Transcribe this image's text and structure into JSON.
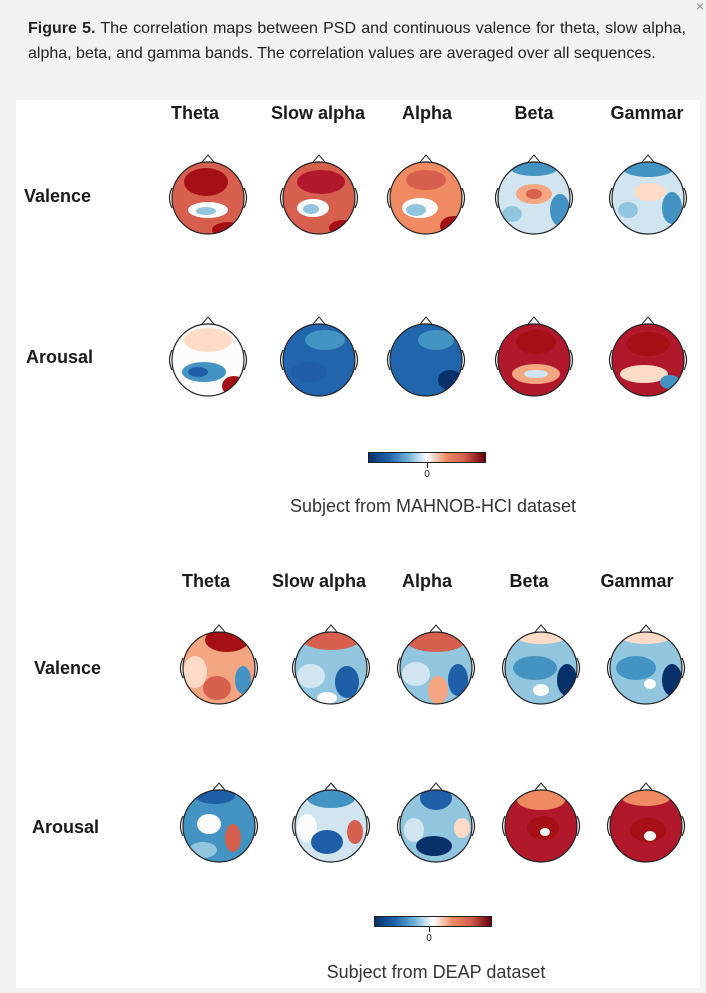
{
  "caption": {
    "label": "Figure 5.",
    "text": " The correlation maps between PSD and continuous valence for theta, slow alpha, alpha, beta, and gamma bands. The correlation values are averaged over all sequences."
  },
  "close_glyph": "×",
  "panels": [
    {
      "bands": [
        "Theta",
        "Slow alpha",
        "Alpha",
        "Beta",
        "Gammar"
      ],
      "rows": [
        "Valence",
        "Arousal"
      ],
      "colorbar_zero": "0",
      "title": "Subject from MAHNOB-HCI dataset"
    },
    {
      "bands": [
        "Theta",
        "Slow alpha",
        "Alpha",
        "Beta",
        "Gammar"
      ],
      "rows": [
        "Valence",
        "Arousal"
      ],
      "colorbar_zero": "0",
      "title": "Subject from DEAP dataset"
    }
  ],
  "colors": {
    "deep_red": "#a50f15",
    "red": "#d6604d",
    "light_red": "#f4a582",
    "white": "#fbfbfb",
    "light_blue": "#92c5de",
    "blue": "#4393c3",
    "deep_blue": "#1f5fa8"
  }
}
